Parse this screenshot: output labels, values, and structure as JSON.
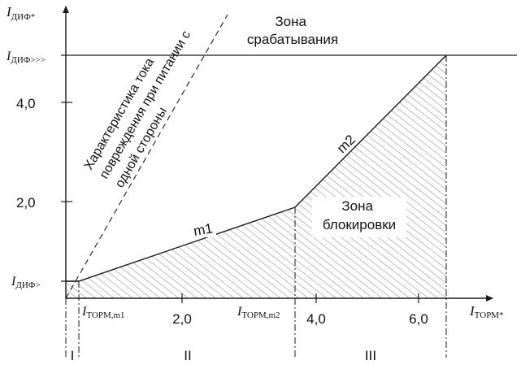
{
  "colors": {
    "line": "#1a1a1a",
    "hatch": "#8c8c8c",
    "background": "#ffffff"
  },
  "axes": {
    "y_label": "I",
    "y_label_sub": "ДИФ*",
    "x_label": "I",
    "x_label_sub": "ТОРМ*"
  },
  "y_ticks": {
    "t4": "4,0",
    "t2": "2,0",
    "dif_low": {
      "main": "I",
      "sub": "ДИФ>"
    },
    "dif_high": {
      "main": "I",
      "sub": "ДИФ>>>"
    }
  },
  "x_ticks": {
    "t2": "2,0",
    "t4": "4,0",
    "t6": "6,0",
    "torm_m1": {
      "main": "I",
      "sub": "ТОРМ,m1"
    },
    "torm_m2": {
      "main": "I",
      "sub": "ТОРМ,m2"
    }
  },
  "zones": {
    "operate": [
      "Зона",
      "срабатывания"
    ],
    "block": [
      "Зона",
      "блокировки"
    ]
  },
  "slopes": {
    "m1": "m1",
    "m2": "m2"
  },
  "fault_characteristic": [
    "Характеристика тока",
    "повреждения при питании с",
    "одной стороны"
  ],
  "regions": [
    "I",
    "II",
    "III"
  ]
}
